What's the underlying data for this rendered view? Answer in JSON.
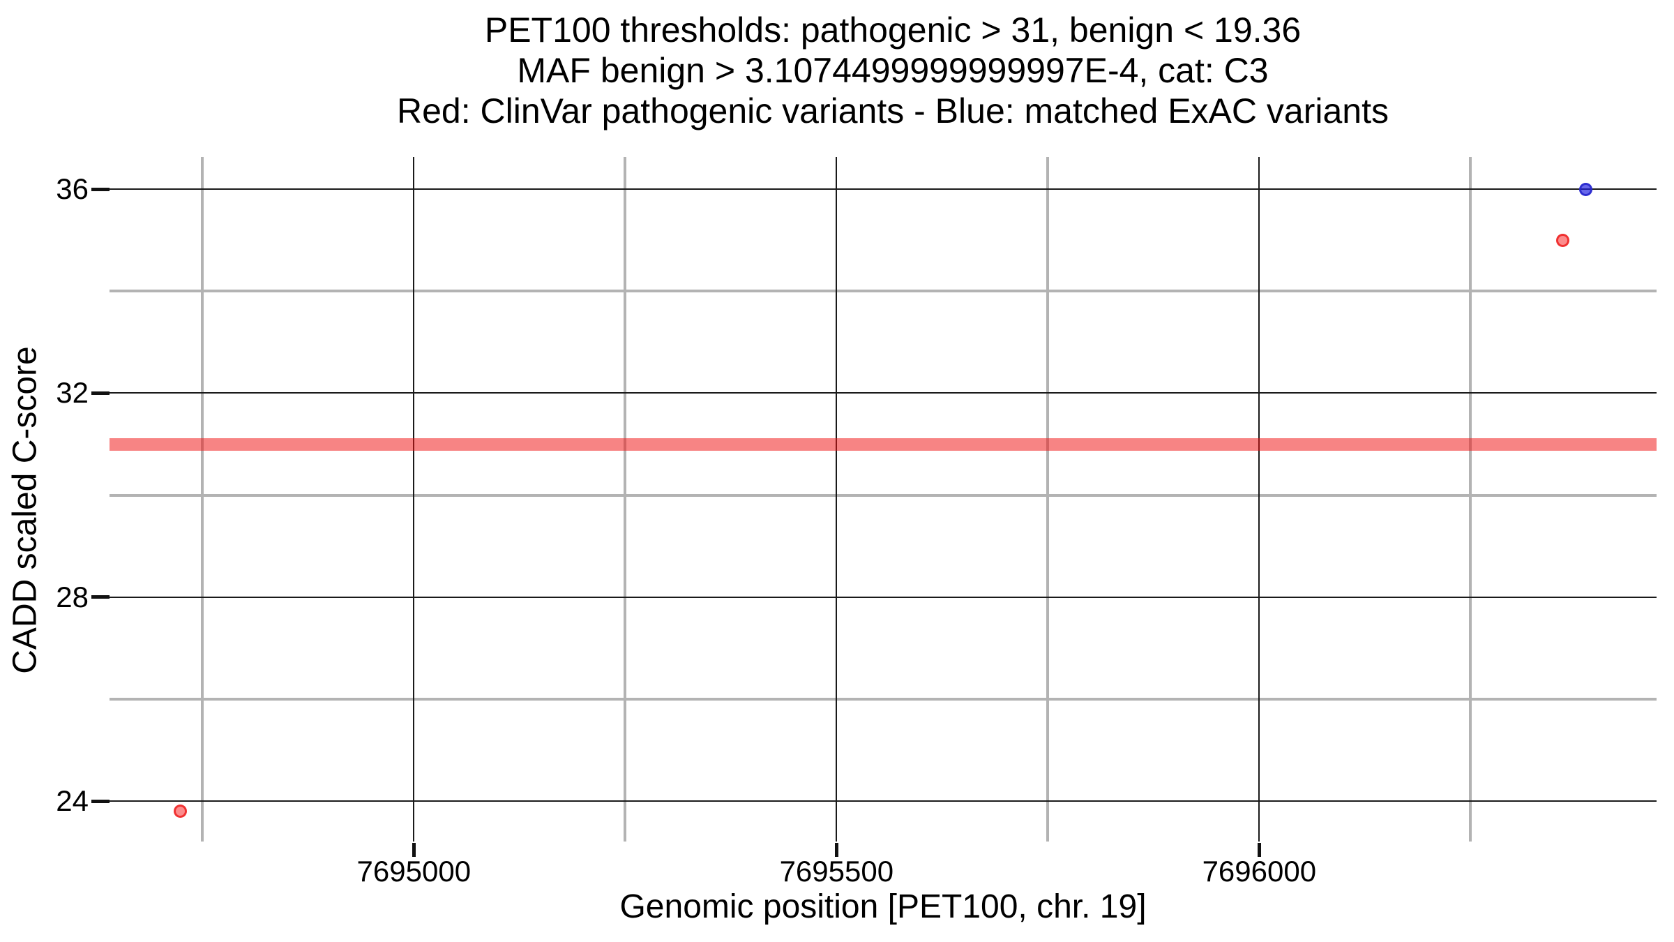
{
  "chart_data": {
    "type": "scatter",
    "title_lines": [
      "PET100 thresholds: pathogenic > 31, benign < 19.36",
      "MAF benign > 3.1074499999999997E-4, cat: C3",
      "Red: ClinVar pathogenic variants - Blue: matched ExAC variants"
    ],
    "xlabel": "Genomic position [PET100, chr. 19]",
    "ylabel": "CADD scaled C-score",
    "xlim": [
      7694640,
      7696470
    ],
    "ylim": [
      23.21,
      36.63
    ],
    "x_major_ticks": [
      7695000,
      7695500,
      7696000
    ],
    "x_minor_gridlines": [
      7694750,
      7695250,
      7695750,
      7696250
    ],
    "y_major_ticks": [
      24,
      28,
      32,
      36
    ],
    "y_minor_gridlines": [
      26,
      30,
      34
    ],
    "grid": true,
    "legend_position": "none",
    "threshold_band": {
      "y": 31,
      "meaning": "pathogenic threshold",
      "fill": "rgba(240,20,20,0.52)"
    },
    "series": [
      {
        "name": "ClinVar pathogenic variants",
        "color": "#f04a4a",
        "fill": "rgba(250,45,45,0.55)",
        "stroke": "rgba(238,34,34,0.85)",
        "points": [
          {
            "x": 7694724,
            "y": 23.8
          },
          {
            "x": 7696359,
            "y": 35.0
          }
        ]
      },
      {
        "name": "matched ExAC variants",
        "color": "#4343d9",
        "fill": "rgba(32,32,225,0.68)",
        "stroke": "rgba(40,40,205,0.9)",
        "points": [
          {
            "x": 7696386,
            "y": 36.0
          }
        ]
      }
    ]
  },
  "colors": {
    "background": "#ffffff",
    "major_grid": "#1a1a1a",
    "minor_grid": "#b3b3b3",
    "text": "#000000"
  }
}
